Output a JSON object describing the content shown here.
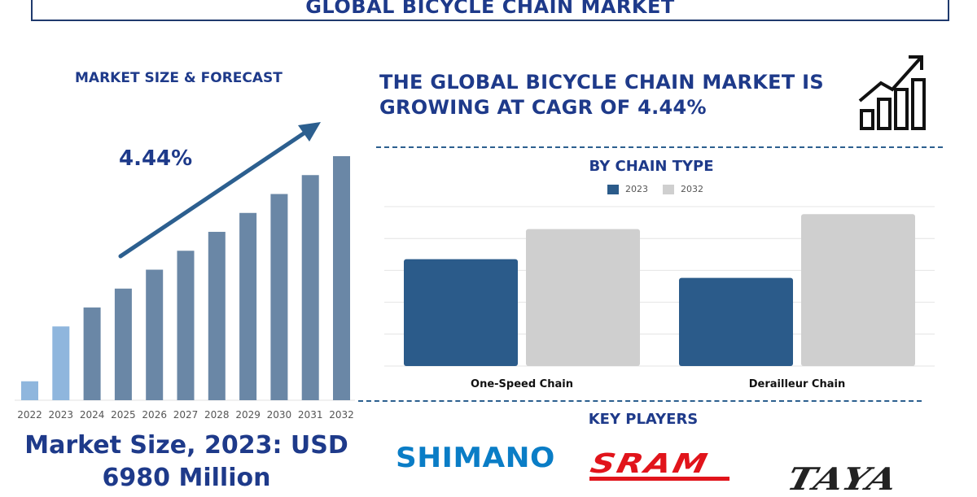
{
  "header": {
    "title": "GLOBAL BICYCLE CHAIN MARKET"
  },
  "left_panel": {
    "heading": "MARKET SIZE & FORECAST",
    "cagr_label": "4.44%",
    "market_size_line1": "Market Size, 2023: USD",
    "market_size_line2": "6980 Million"
  },
  "headline": {
    "line1": "THE GLOBAL BICYCLE CHAIN MARKET IS",
    "line2": "GROWING AT CAGR OF 4.44%"
  },
  "icons": {
    "growth": "bar-growth-arrow-icon"
  },
  "colors": {
    "navy": "#1e3a8a",
    "bar_dark": "#2b5b8a",
    "bar_light": "#cfcfcf",
    "bar_steel": "#6a87a6",
    "bar_highlight": "#8fb6dd"
  },
  "chart_data": [
    {
      "type": "bar",
      "title": "",
      "categories": [
        "2022",
        "2023",
        "2024",
        "2025",
        "2026",
        "2027",
        "2028",
        "2029",
        "2030",
        "2031",
        "2032"
      ],
      "values": [
        1.0,
        3.9,
        4.9,
        5.9,
        6.9,
        7.9,
        8.9,
        9.9,
        10.9,
        11.9,
        12.9
      ],
      "highlight": [
        "2022",
        "2023"
      ],
      "trend_arrow": true
    },
    {
      "type": "bar",
      "title": "BY CHAIN TYPE",
      "categories": [
        "One-Speed Chain",
        "Derailleur Chain"
      ],
      "series": [
        {
          "name": "2023",
          "values": [
            57,
            47
          ]
        },
        {
          "name": "2032",
          "values": [
            73,
            81
          ]
        }
      ],
      "ylim": [
        0,
        85
      ],
      "grid": true,
      "legend": "top-center"
    }
  ],
  "key_players": {
    "title": "KEY PLAYERS",
    "logos": [
      "SHIMANO",
      "SRAM",
      "TAYA"
    ]
  }
}
